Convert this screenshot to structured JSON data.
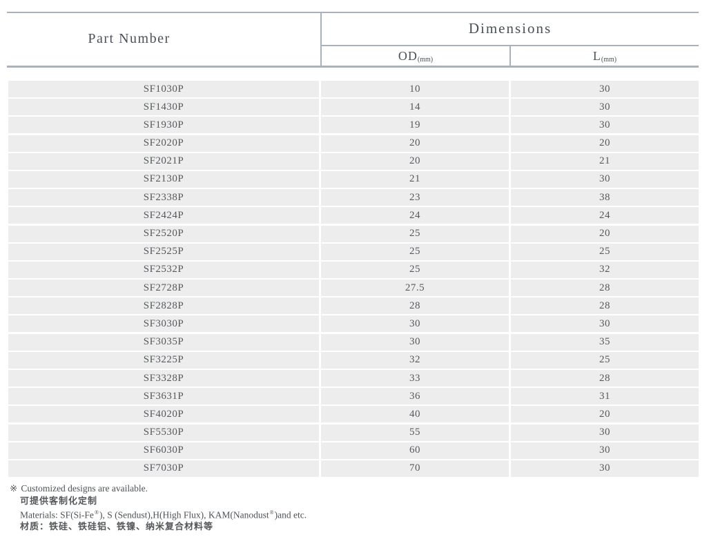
{
  "header": {
    "part_number_label": "Part Number",
    "dimensions_label": "Dimensions",
    "od_label": "OD",
    "od_unit": "(mm)",
    "l_label": "L",
    "l_unit": "(mm)"
  },
  "rows": [
    {
      "part": "SF1030P",
      "od": "10",
      "l": "30"
    },
    {
      "part": "SF1430P",
      "od": "14",
      "l": "30"
    },
    {
      "part": "SF1930P",
      "od": "19",
      "l": "30"
    },
    {
      "part": "SF2020P",
      "od": "20",
      "l": "20"
    },
    {
      "part": "SF2021P",
      "od": "20",
      "l": "21"
    },
    {
      "part": "SF2130P",
      "od": "21",
      "l": "30"
    },
    {
      "part": "SF2338P",
      "od": "23",
      "l": "38"
    },
    {
      "part": "SF2424P",
      "od": "24",
      "l": "24"
    },
    {
      "part": "SF2520P",
      "od": "25",
      "l": "20"
    },
    {
      "part": "SF2525P",
      "od": "25",
      "l": "25"
    },
    {
      "part": "SF2532P",
      "od": "25",
      "l": "32"
    },
    {
      "part": "SF2728P",
      "od": "27.5",
      "l": "28"
    },
    {
      "part": "SF2828P",
      "od": "28",
      "l": "28"
    },
    {
      "part": "SF3030P",
      "od": "30",
      "l": "30"
    },
    {
      "part": "SF3035P",
      "od": "30",
      "l": "35"
    },
    {
      "part": "SF3225P",
      "od": "32",
      "l": "25"
    },
    {
      "part": "SF3328P",
      "od": "33",
      "l": "28"
    },
    {
      "part": "SF3631P",
      "od": "36",
      "l": "31"
    },
    {
      "part": "SF4020P",
      "od": "40",
      "l": "20"
    },
    {
      "part": "SF5530P",
      "od": "55",
      "l": "30"
    },
    {
      "part": "SF6030P",
      "od": "60",
      "l": "30"
    },
    {
      "part": "SF7030P",
      "od": "70",
      "l": "30"
    }
  ],
  "notes": {
    "symbol": "※",
    "customized_en": "Customized designs are available.",
    "customized_zh": "可提供客制化定制",
    "materials_en_1": "Materials: SF(Si-Fe",
    "materials_sup_1": "®",
    "materials_en_2": "), S (Sendust),H(High Flux), KAM(Nanodust",
    "materials_sup_2": "®",
    "materials_en_3": ")and etc.",
    "materials_zh": "材质：铁硅、铁硅铝、铁镍、纳米复合材料等"
  },
  "colors": {
    "border": "#a9b2bc",
    "row_bg": "#ededed",
    "header_text": "#4a5056",
    "cell_text": "#55595d",
    "note_text": "#4e5357"
  }
}
